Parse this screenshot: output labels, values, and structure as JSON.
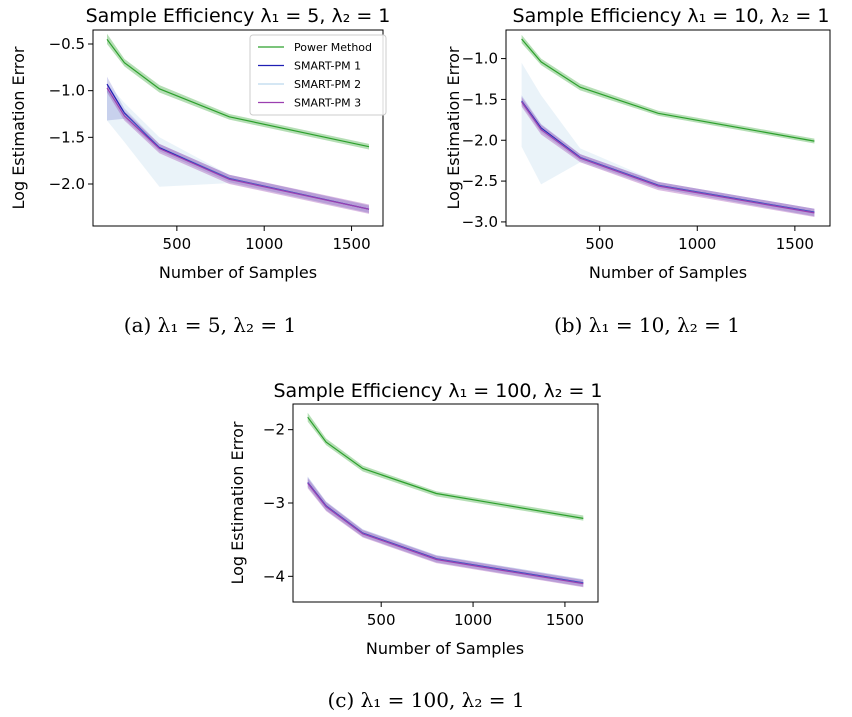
{
  "colors": {
    "power": "#2ca02c",
    "pm1": "#1f1fb4",
    "pm2": "#7ab4dc",
    "pm3": "#9b3fb0"
  },
  "chart_data": [
    {
      "type": "line",
      "title": "Sample Efficiency λ₁ = 5, λ₂ = 1",
      "xlabel": "Number of Samples",
      "ylabel": "Log Estimation Error",
      "caption": "(a) λ₁ = 5, λ₂ = 1",
      "xlim": [
        20,
        1680
      ],
      "ylim": [
        -2.45,
        -0.35
      ],
      "xticks": [
        500,
        1000,
        1500
      ],
      "yticks": [
        -0.5,
        -1.0,
        -1.5,
        -2.0
      ],
      "ytick_labels": [
        "−0.5",
        "−1.0",
        "−1.5",
        "−2.0"
      ],
      "legend_position": "upper right",
      "x": [
        100,
        200,
        400,
        800,
        1600
      ],
      "series": [
        {
          "name": "Power Method",
          "color_key": "power",
          "values": [
            -0.45,
            -0.7,
            -0.98,
            -1.28,
            -1.6
          ],
          "lower": [
            -0.5,
            -0.74,
            -1.02,
            -1.31,
            -1.63
          ],
          "upper": [
            -0.39,
            -0.66,
            -0.94,
            -1.25,
            -1.57
          ]
        },
        {
          "name": "SMART-PM 1",
          "color_key": "pm1",
          "values": [
            -0.93,
            -1.24,
            -1.61,
            -1.94,
            -2.27
          ],
          "lower": [
            -1.32,
            -1.3,
            -1.65,
            -1.98,
            -2.31
          ],
          "upper": [
            -0.85,
            -1.19,
            -1.57,
            -1.9,
            -2.23
          ]
        },
        {
          "name": "SMART-PM 2",
          "color_key": "pm2",
          "values": [
            -1.0,
            -1.25,
            -1.6,
            -1.94,
            -2.27
          ],
          "lower": [
            -1.32,
            -1.55,
            -2.03,
            -1.99,
            -2.31
          ],
          "upper": [
            -0.92,
            -1.13,
            -1.5,
            -1.9,
            -2.23
          ]
        },
        {
          "name": "SMART-PM 3",
          "color_key": "pm3",
          "values": [
            -0.97,
            -1.27,
            -1.62,
            -1.95,
            -2.27
          ],
          "lower": [
            -1.02,
            -1.32,
            -1.67,
            -2.0,
            -2.32
          ],
          "upper": [
            -0.92,
            -1.22,
            -1.57,
            -1.9,
            -2.22
          ]
        }
      ]
    },
    {
      "type": "line",
      "title": "Sample Efficiency λ₁ = 10, λ₂ = 1",
      "xlabel": "Number of Samples",
      "ylabel": "Log Estimation Error",
      "caption": "(b) λ₁ = 10, λ₂ = 1",
      "xlim": [
        20,
        1680
      ],
      "ylim": [
        -3.05,
        -0.65
      ],
      "xticks": [
        500,
        1000,
        1500
      ],
      "yticks": [
        -1.0,
        -1.5,
        -2.0,
        -2.5,
        -3.0
      ],
      "ytick_labels": [
        "−1.0",
        "−1.5",
        "−2.0",
        "−2.5",
        "−3.0"
      ],
      "legend_position": "",
      "x": [
        100,
        200,
        400,
        800,
        1600
      ],
      "series": [
        {
          "name": "Power Method",
          "color_key": "power",
          "values": [
            -0.76,
            -1.04,
            -1.35,
            -1.67,
            -2.01
          ],
          "lower": [
            -0.81,
            -1.08,
            -1.39,
            -1.7,
            -2.04
          ],
          "upper": [
            -0.71,
            -1.0,
            -1.31,
            -1.64,
            -1.98
          ]
        },
        {
          "name": "SMART-PM 1",
          "color_key": "pm1",
          "values": [
            -1.52,
            -1.85,
            -2.21,
            -2.55,
            -2.88
          ],
          "lower": [
            -1.57,
            -1.9,
            -2.25,
            -2.59,
            -2.93
          ],
          "upper": [
            -1.45,
            -1.8,
            -2.17,
            -2.51,
            -2.84
          ]
        },
        {
          "name": "SMART-PM 2",
          "color_key": "pm2",
          "values": [
            -1.52,
            -1.86,
            -2.21,
            -2.55,
            -2.88
          ],
          "lower": [
            -2.08,
            -2.54,
            -2.27,
            -2.59,
            -2.93
          ],
          "upper": [
            -1.05,
            -1.45,
            -2.1,
            -2.51,
            -2.84
          ]
        },
        {
          "name": "SMART-PM 3",
          "color_key": "pm3",
          "values": [
            -1.53,
            -1.87,
            -2.22,
            -2.56,
            -2.89
          ],
          "lower": [
            -1.59,
            -1.93,
            -2.27,
            -2.61,
            -2.94
          ],
          "upper": [
            -1.47,
            -1.81,
            -2.17,
            -2.51,
            -2.84
          ]
        }
      ]
    },
    {
      "type": "line",
      "title": "Sample Efficiency λ₁ = 100, λ₂ = 1",
      "xlabel": "Number of Samples",
      "ylabel": "Log Estimation Error",
      "caption": "(c) λ₁ = 100, λ₂ = 1",
      "xlim": [
        20,
        1680
      ],
      "ylim": [
        -4.35,
        -1.65
      ],
      "xticks": [
        500,
        1000,
        1500
      ],
      "yticks": [
        -2,
        -3,
        -4
      ],
      "ytick_labels": [
        "−2",
        "−3",
        "−4"
      ],
      "legend_position": "",
      "x": [
        100,
        200,
        400,
        800,
        1600
      ],
      "series": [
        {
          "name": "Power Method",
          "color_key": "power",
          "values": [
            -1.83,
            -2.17,
            -2.53,
            -2.87,
            -3.21
          ],
          "lower": [
            -1.89,
            -2.21,
            -2.57,
            -2.91,
            -3.24
          ],
          "upper": [
            -1.77,
            -2.12,
            -2.49,
            -2.84,
            -3.17
          ]
        },
        {
          "name": "SMART-PM 1",
          "color_key": "pm1",
          "values": [
            -2.72,
            -3.04,
            -3.41,
            -3.76,
            -4.09
          ],
          "lower": [
            -2.78,
            -3.1,
            -3.46,
            -3.81,
            -4.14
          ],
          "upper": [
            -2.64,
            -2.98,
            -3.36,
            -3.71,
            -4.04
          ]
        },
        {
          "name": "SMART-PM 2",
          "color_key": "pm2",
          "values": [
            -2.72,
            -3.04,
            -3.41,
            -3.76,
            -4.09
          ],
          "lower": [
            -2.78,
            -3.1,
            -3.46,
            -3.81,
            -4.14
          ],
          "upper": [
            -2.64,
            -2.98,
            -3.36,
            -3.71,
            -4.04
          ]
        },
        {
          "name": "SMART-PM 3",
          "color_key": "pm3",
          "values": [
            -2.73,
            -3.05,
            -3.42,
            -3.77,
            -4.1
          ],
          "lower": [
            -2.8,
            -3.11,
            -3.47,
            -3.82,
            -4.15
          ],
          "upper": [
            -2.66,
            -2.99,
            -3.37,
            -3.72,
            -4.05
          ]
        }
      ]
    }
  ]
}
